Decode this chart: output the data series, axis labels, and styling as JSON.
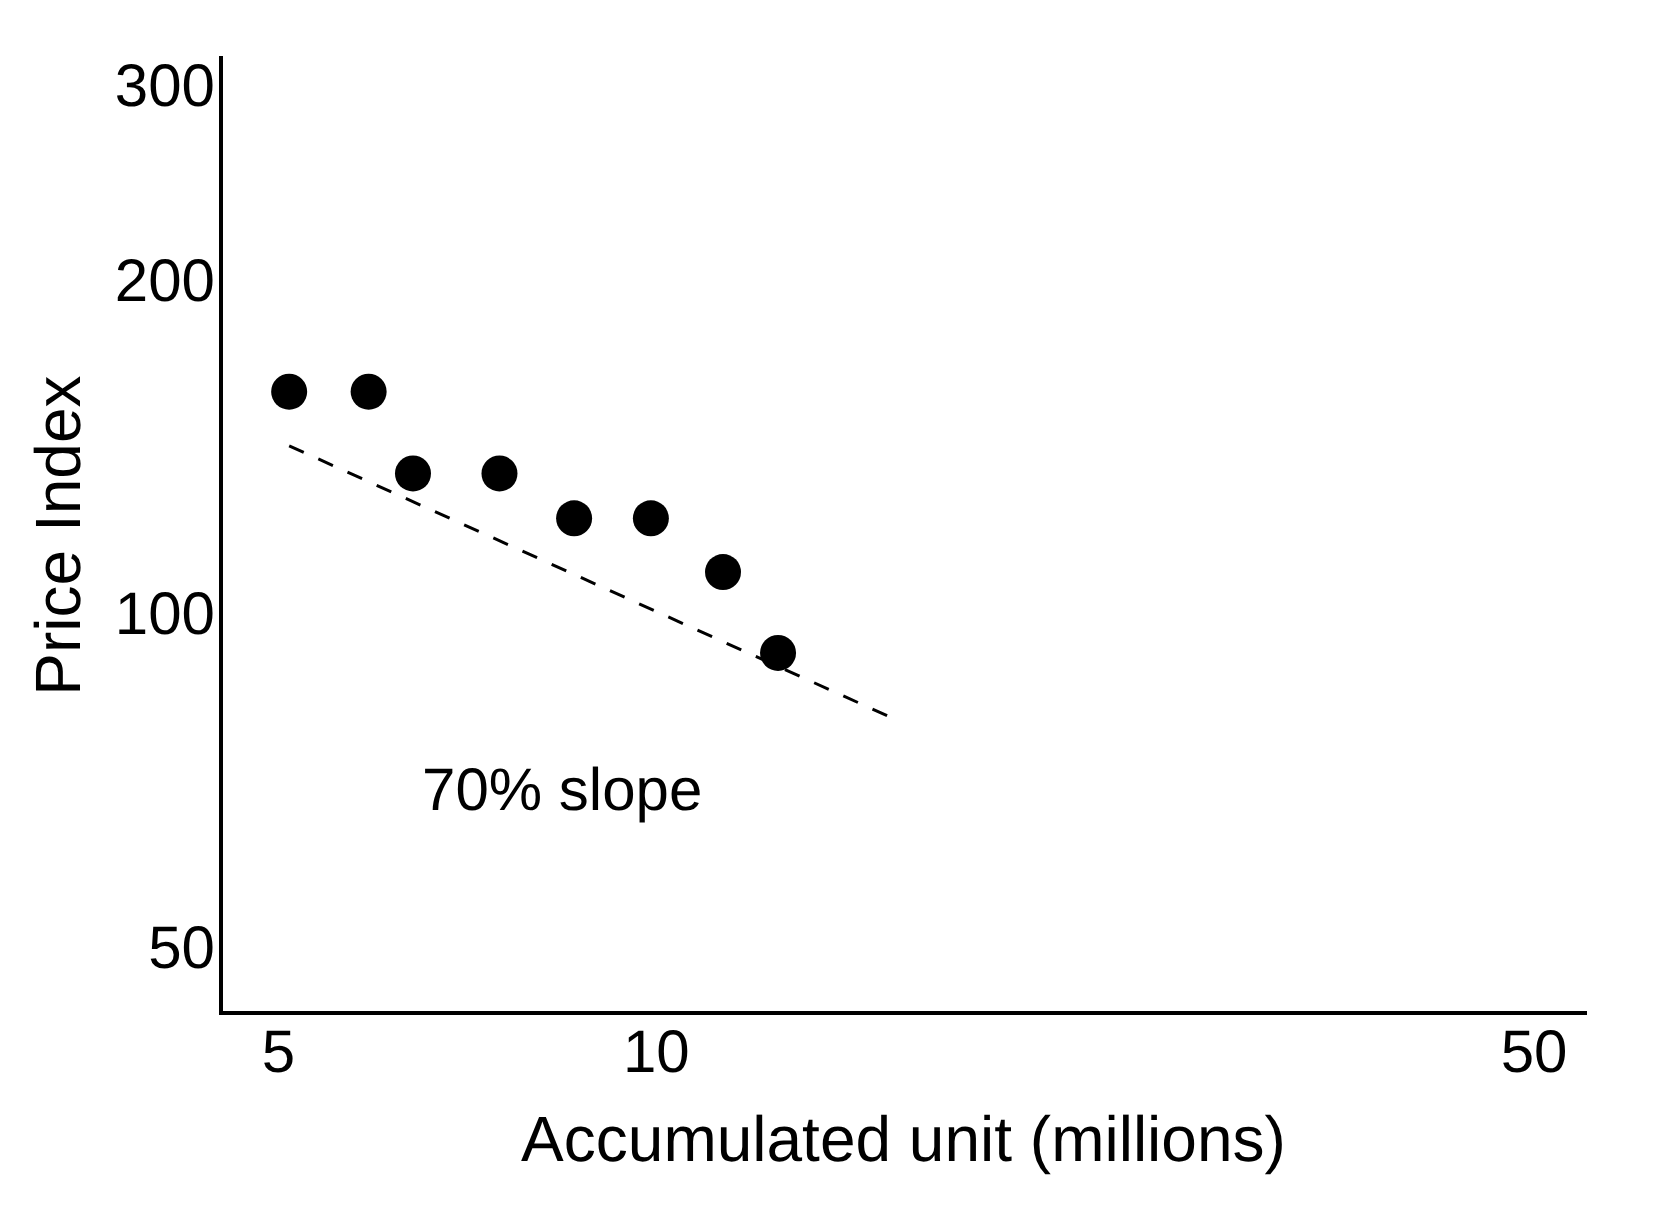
{
  "chart_data": {
    "type": "scatter",
    "xlabel": "Accumulated unit (millions)",
    "ylabel": "Price Index",
    "log": "xy",
    "grid": false,
    "legend": false,
    "marker": "circle",
    "xlim": [
      4.5,
      55
    ],
    "xticks": [
      5,
      10,
      50
    ],
    "ylim": [
      44,
      320
    ],
    "yticks": [
      50,
      100,
      200,
      300
    ],
    "series": [
      {
        "color": "#000000",
        "x": [
          5.1,
          5.9,
          6.4,
          7.5,
          8.6,
          9.9,
          11.3,
          12.5
        ],
        "values": [
          160,
          160,
          135,
          135,
          123,
          123,
          110,
          93
        ]
      },
      {
        "type": "line",
        "color": "#000000",
        "marker": "none",
        "line_style": "dashed",
        "x": [
          5.1,
          15.5
        ],
        "values": [
          143,
          81
        ]
      }
    ],
    "annotations": [
      "70% slope"
    ]
  }
}
